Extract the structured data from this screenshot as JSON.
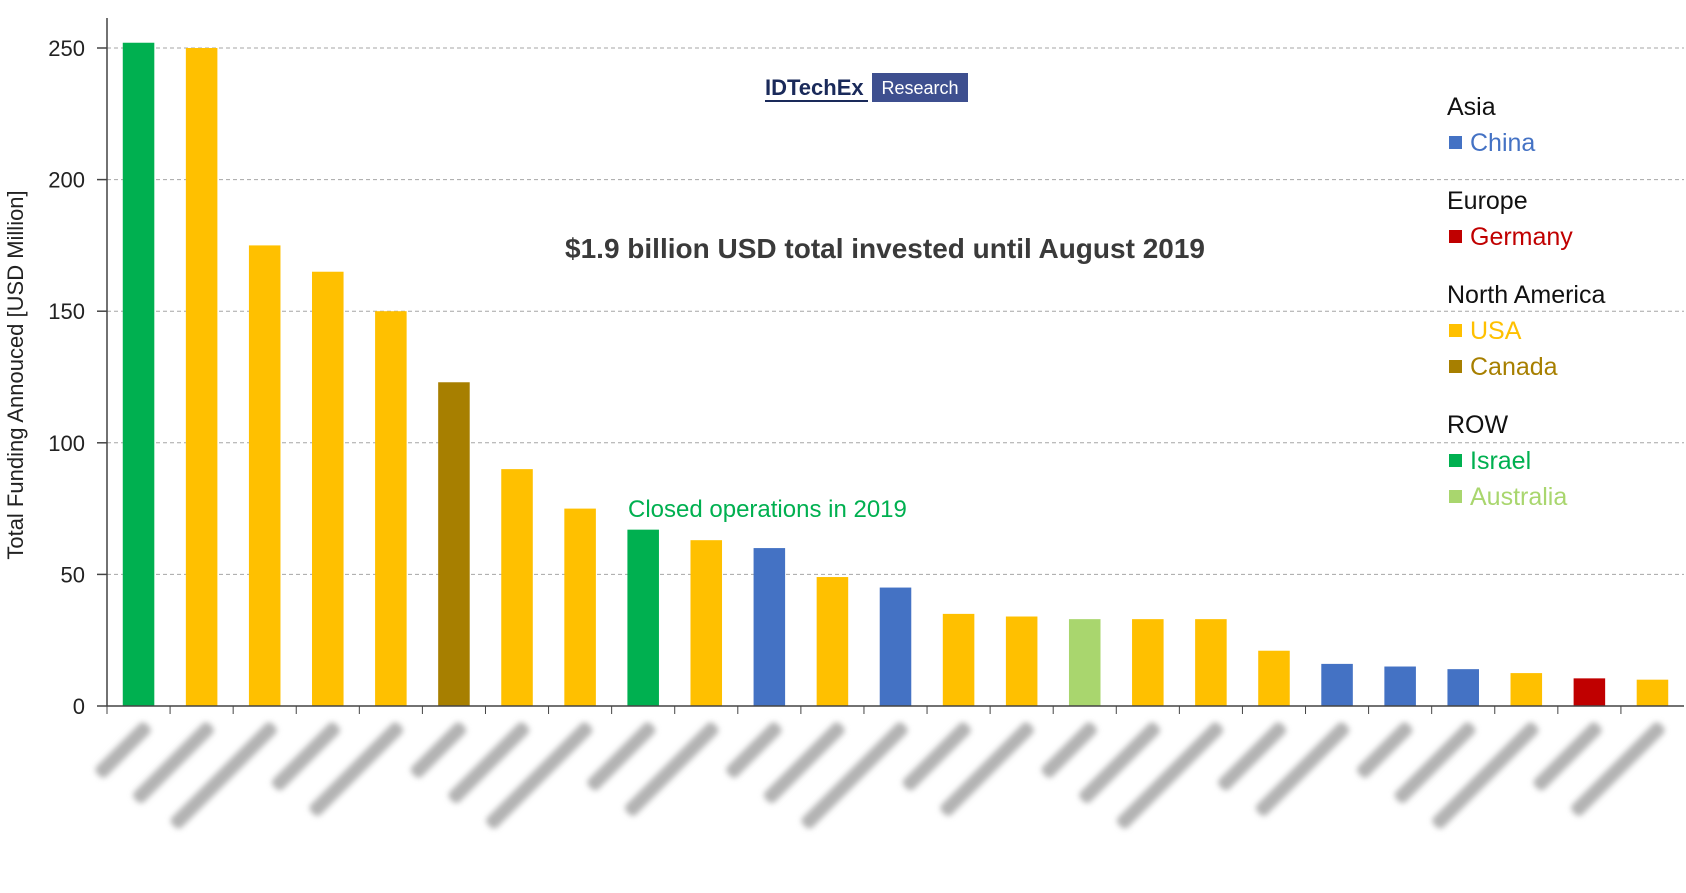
{
  "logo": {
    "main": "IDTechEx",
    "box": "Research"
  },
  "headline": "$1.9 billion USD total invested until August 2019",
  "annotation": "Closed operations in 2019",
  "colors": {
    "China": "#4472c4",
    "Germany": "#c00000",
    "USA": "#ffc000",
    "Canada": "#a77f00",
    "Israel": "#00b050",
    "Australia": "#a9d66e"
  },
  "legend": [
    {
      "group": "Asia",
      "items": [
        {
          "label": "China",
          "color": "#4472c4"
        }
      ]
    },
    {
      "group": "Europe",
      "items": [
        {
          "label": "Germany",
          "color": "#c00000"
        }
      ]
    },
    {
      "group": "North America",
      "items": [
        {
          "label": "USA",
          "color": "#ffc000"
        },
        {
          "label": "Canada",
          "color": "#a77f00"
        }
      ]
    },
    {
      "group": "ROW",
      "items": [
        {
          "label": "Israel",
          "color": "#00b050"
        },
        {
          "label": "Australia",
          "color": "#a9d66e"
        }
      ]
    }
  ],
  "chart_data": {
    "type": "bar",
    "ylabel": "Total Funding Annouced [USD Million]",
    "ylim": [
      0,
      250
    ],
    "yticks": [
      0,
      50,
      100,
      150,
      200,
      250
    ],
    "grid": true,
    "legend_position": "right",
    "x_tick_labels_blurred": true,
    "values": [
      252,
      250,
      175,
      165,
      150,
      123,
      90,
      75,
      67,
      63,
      60,
      49,
      45,
      35,
      34,
      33,
      33,
      33,
      21,
      16,
      15,
      14,
      12.5,
      10.5,
      10
    ],
    "bar_colors": [
      "#00b050",
      "#ffc000",
      "#ffc000",
      "#ffc000",
      "#ffc000",
      "#a77f00",
      "#ffc000",
      "#ffc000",
      "#00b050",
      "#ffc000",
      "#4472c4",
      "#ffc000",
      "#4472c4",
      "#ffc000",
      "#ffc000",
      "#a9d66e",
      "#ffc000",
      "#ffc000",
      "#ffc000",
      "#4472c4",
      "#4472c4",
      "#4472c4",
      "#ffc000",
      "#c00000",
      "#ffc000"
    ],
    "annotated_bar_index": 8
  }
}
